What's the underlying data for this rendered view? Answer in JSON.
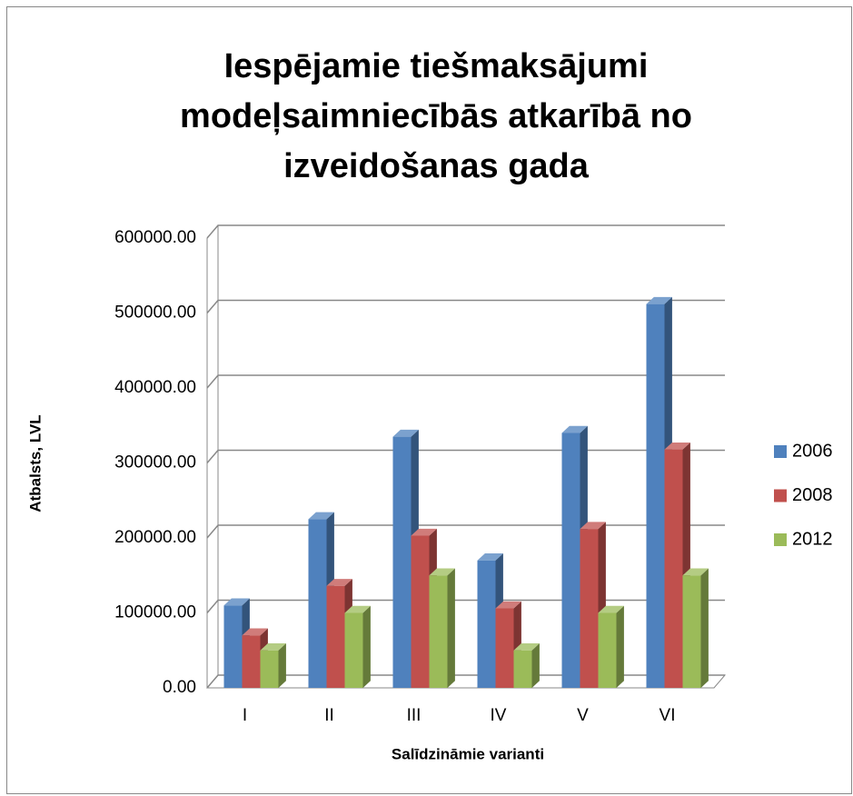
{
  "chart_data": {
    "type": "bar3d",
    "title": [
      "Iespējamie tiešmaksājumi",
      "modeļsaimniecībās atkarībā no",
      "izveidošanas gada"
    ],
    "x_label": "Salīdzināmie varianti",
    "y_label": "Atbalsts, LVL",
    "categories": [
      "I",
      "II",
      "III",
      "IV",
      "V",
      "VI"
    ],
    "series": [
      {
        "name": "2006",
        "color": "#4f81bd",
        "values": [
          110000,
          225000,
          335000,
          170000,
          340000,
          512000
        ]
      },
      {
        "name": "2008",
        "color": "#c0504d",
        "values": [
          70000,
          136000,
          203000,
          106000,
          212000,
          318000
        ]
      },
      {
        "name": "2012",
        "color": "#9bbb59",
        "values": [
          50000,
          100000,
          150000,
          50000,
          100000,
          150000
        ]
      }
    ],
    "ylim": [
      0,
      600000
    ],
    "yticks": [
      {
        "value": 0,
        "label": "0.00"
      },
      {
        "value": 100000,
        "label": "100000.00"
      },
      {
        "value": 200000,
        "label": "200000.00"
      },
      {
        "value": 300000,
        "label": "300000.00"
      },
      {
        "value": 400000,
        "label": "400000.00"
      },
      {
        "value": 500000,
        "label": "500000.00"
      },
      {
        "value": 600000,
        "label": "600000.00"
      }
    ],
    "grid": true,
    "legend": "right"
  }
}
